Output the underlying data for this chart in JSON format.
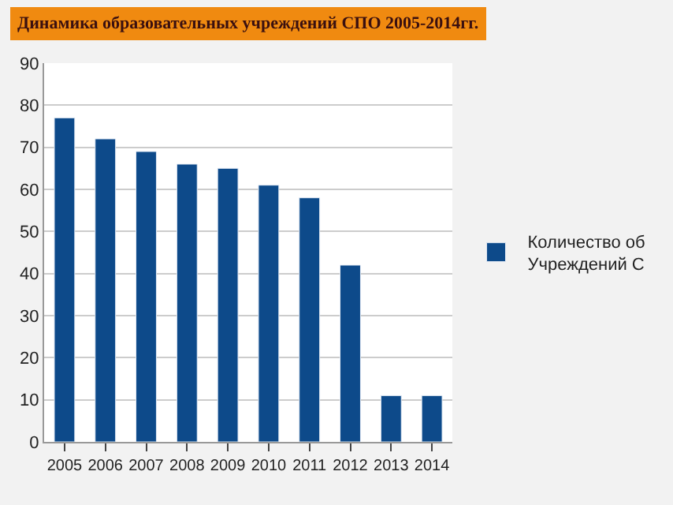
{
  "chart_data": {
    "type": "bar",
    "title": "Динамика образовательных учреждений СПО 2005-2014гг.",
    "categories": [
      "2005",
      "2006",
      "2007",
      "2008",
      "2009",
      "2010",
      "2011",
      "2012",
      "2013",
      "2014"
    ],
    "series": [
      {
        "name": "Количество об\nУчреждений С",
        "color": "#0d4a8a",
        "values": [
          77,
          72,
          69,
          66,
          65,
          61,
          58,
          42,
          11,
          11
        ]
      }
    ],
    "ylim": [
      0,
      90
    ],
    "yticks": [
      0,
      10,
      20,
      30,
      40,
      50,
      60,
      70,
      80,
      90
    ],
    "grid": "y",
    "legend": "right"
  }
}
